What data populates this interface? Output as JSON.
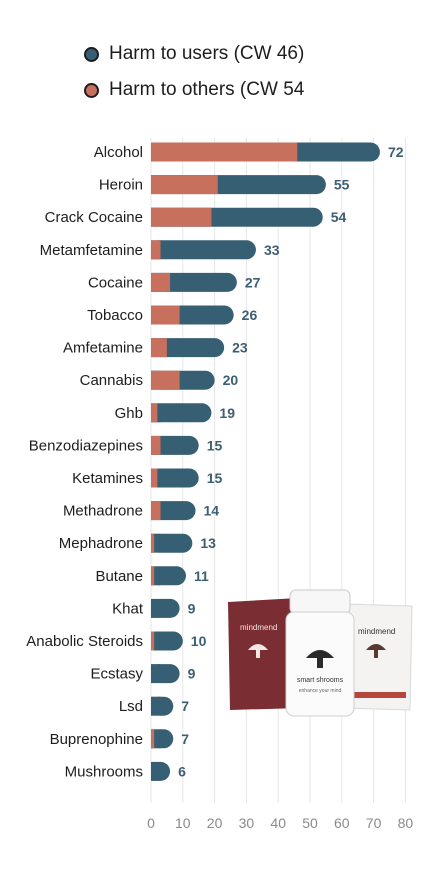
{
  "colors": {
    "users": "#365f73",
    "others": "#c6705d",
    "grid": "#e6e6e6"
  },
  "legend": {
    "users": "Harm to users (CW 46)",
    "others": "Harm to others (CW 54"
  },
  "chart_data": {
    "type": "bar",
    "orientation": "horizontal",
    "stacked": true,
    "categories": [
      "Alcohol",
      "Heroin",
      "Crack Cocaine",
      "Metamfetamine",
      "Cocaine",
      "Tobacco",
      "Amfetamine",
      "Cannabis",
      "Ghb",
      "Benzodiazepines",
      "Ketamines",
      "Methadrone",
      "Mephadrone",
      "Butane",
      "Khat",
      "Anabolic Steroids",
      "Ecstasy",
      "Lsd",
      "Buprenophine",
      "Mushrooms"
    ],
    "series": [
      {
        "name": "Harm to others (CW 54",
        "values": [
          46,
          21,
          19,
          3,
          6,
          9,
          5,
          9,
          2,
          3,
          2,
          3,
          1,
          1,
          0,
          1,
          0,
          0,
          1,
          0
        ]
      },
      {
        "name": "Harm to users (CW 46)",
        "values": [
          26,
          34,
          35,
          30,
          21,
          17,
          18,
          11,
          17,
          12,
          13,
          11,
          12,
          10,
          9,
          9,
          9,
          7,
          6,
          6
        ]
      }
    ],
    "totals": [
      72,
      55,
      54,
      33,
      27,
      26,
      23,
      20,
      19,
      15,
      15,
      14,
      13,
      11,
      9,
      10,
      9,
      7,
      7,
      6
    ],
    "xticks": [
      0,
      10,
      20,
      30,
      40,
      50,
      60,
      70,
      80
    ],
    "xlim": [
      0,
      80
    ],
    "grid": "vertical"
  },
  "product": {
    "brand": "mindmend",
    "jar_text": "smart shrooms",
    "jar_sub": "enhance your mind"
  }
}
